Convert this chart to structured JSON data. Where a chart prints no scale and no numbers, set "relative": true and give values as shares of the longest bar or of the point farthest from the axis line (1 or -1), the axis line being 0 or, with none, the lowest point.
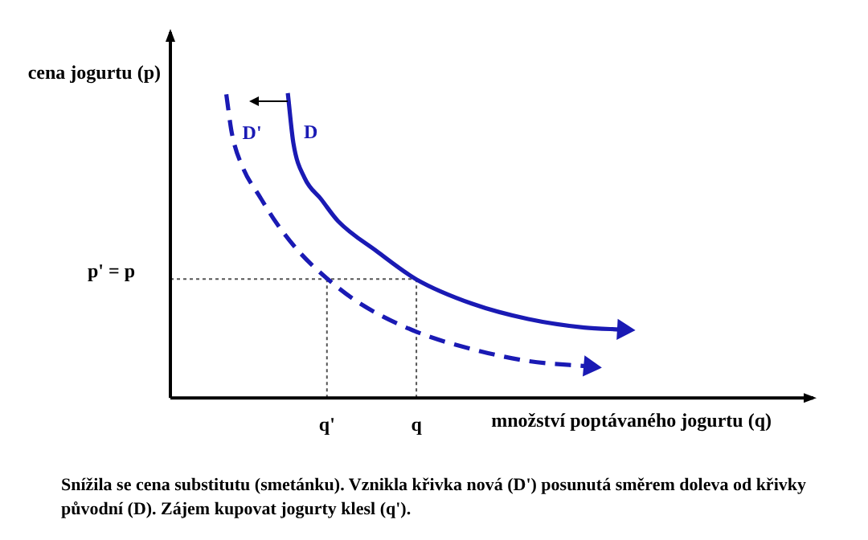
{
  "chart_data": {
    "type": "line",
    "relative": true,
    "xlabel": "množství poptávaného jogurtu (q)",
    "ylabel": "cena jogurtu (p)",
    "categories": [
      null,
      null,
      null,
      null,
      null,
      null,
      null,
      null,
      null,
      null,
      null,
      null,
      null,
      null,
      null,
      null,
      null,
      null,
      null,
      null,
      null,
      null,
      null,
      null,
      null,
      null,
      null,
      null,
      "q'",
      null,
      null,
      null,
      null,
      null,
      null,
      null,
      null,
      null,
      null,
      null,
      null,
      null,
      null,
      null,
      "q",
      null,
      null,
      null,
      null,
      null,
      null,
      null,
      null,
      null,
      null,
      null,
      null,
      null,
      null,
      null,
      null,
      null,
      null,
      null,
      null,
      null,
      null,
      null,
      null,
      null,
      null,
      null,
      null,
      null,
      null,
      null,
      null,
      null,
      null,
      null,
      null,
      null,
      null,
      null,
      null,
      null,
      null,
      null,
      null,
      null,
      null,
      null,
      null,
      null,
      null,
      null,
      null,
      null,
      null,
      null,
      null,
      null,
      null,
      null,
      null,
      null,
      null,
      null,
      null,
      null,
      null,
      null,
      null,
      null,
      null,
      null
    ],
    "series": [
      {
        "name": "D'",
        "color": "#1a1ab4",
        "line_style": "dashed",
        "values": [
          null,
          null,
          null,
          null,
          null,
          null,
          null,
          null,
          null,
          null,
          0.996,
          0.868,
          null,
          0.754,
          null,
          null,
          0.66,
          null,
          null,
          0.573,
          null,
          null,
          null,
          0.48,
          null,
          null,
          null,
          null,
          0.392,
          null,
          null,
          null,
          null,
          null,
          0.309,
          null,
          null,
          null,
          null,
          null,
          null,
          null,
          null,
          null,
          0.217,
          null,
          null,
          null,
          null,
          null,
          null,
          null,
          null,
          null,
          0.16,
          null,
          null,
          null,
          null,
          null,
          null,
          null,
          null,
          null,
          0.121,
          null,
          null,
          null,
          null,
          null,
          null,
          null,
          null,
          null,
          null,
          0.103,
          null,
          null,
          null,
          null,
          null,
          null,
          null,
          null,
          null,
          null,
          null,
          null,
          null,
          null,
          null,
          null,
          null,
          null,
          null,
          null,
          null,
          null,
          null,
          null,
          null,
          null,
          null,
          null,
          null,
          null,
          null,
          null,
          null,
          null,
          null,
          null,
          null,
          null,
          null,
          null
        ]
      },
      {
        "name": "D",
        "color": "#1a1ab4",
        "line_style": "solid",
        "values": [
          null,
          null,
          null,
          null,
          null,
          null,
          null,
          null,
          null,
          null,
          null,
          null,
          null,
          null,
          null,
          null,
          null,
          null,
          null,
          null,
          null,
          1,
          0.836,
          null,
          0.722,
          null,
          null,
          0.651,
          null,
          null,
          0.58,
          null,
          null,
          null,
          null,
          null,
          null,
          0.48,
          null,
          null,
          null,
          null,
          null,
          null,
          0.389,
          null,
          null,
          null,
          null,
          null,
          null,
          null,
          null,
          null,
          0.309,
          null,
          null,
          null,
          null,
          null,
          null,
          null,
          null,
          null,
          0.259,
          null,
          null,
          null,
          null,
          null,
          null,
          null,
          null,
          null,
          0.231,
          null,
          null,
          null,
          null,
          null,
          null,
          0.224,
          null,
          null,
          null,
          null,
          null,
          null,
          null,
          null,
          null,
          null,
          null,
          null,
          null,
          null,
          null,
          null,
          null,
          null,
          null,
          null,
          null,
          null,
          null,
          null,
          null,
          null,
          null,
          null,
          null,
          null,
          null,
          null,
          null,
          null
        ]
      }
    ],
    "ref_lines": [
      {
        "axis": "y",
        "value": 0.39,
        "label": "p' = p",
        "line_style": "dotted",
        "color": "#555555"
      },
      {
        "axis": "x",
        "value": "q'",
        "line_style": "dotted",
        "color": "#555555"
      },
      {
        "axis": "x",
        "value": "q",
        "line_style": "dotted",
        "color": "#555555"
      }
    ],
    "legend": false,
    "grid": false,
    "marker": "none",
    "annotations": [
      "Snížila se cena substitutu (smetánku). Vznikla křivka nová (D') posunutá směrem doleva od křivky původní (D). Zájem kupovat jogurty klesl (q')."
    ]
  }
}
